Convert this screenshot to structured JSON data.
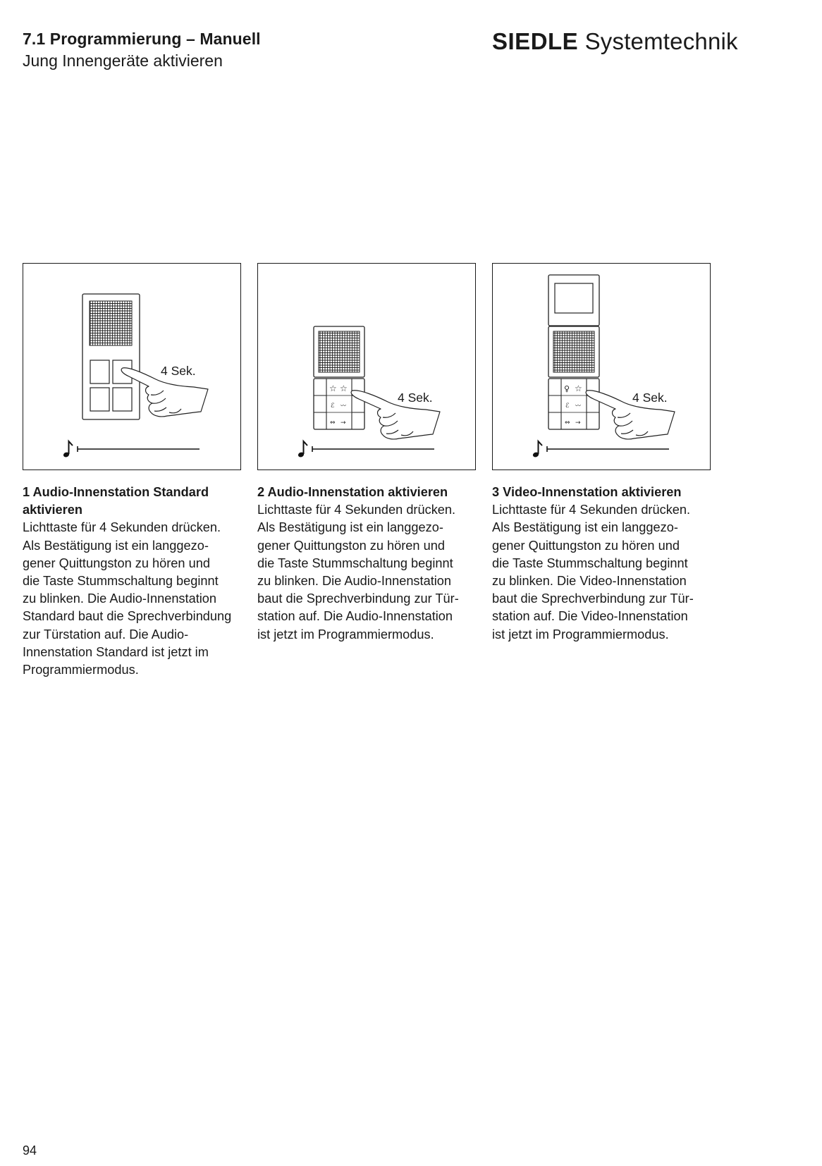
{
  "header": {
    "title": "7.1 Programmierung – Manuell",
    "subtitle": "Jung Innengeräte aktivieren",
    "brand_bold": "SIEDLE",
    "brand_regular": "Systemtechnik"
  },
  "figures": [
    {
      "duration_label": "4 Sek.",
      "caption_title": "1 Audio-Innenstation Standard aktivieren",
      "caption_lines": [
        "Lichttaste für 4 Sekunden drücken.",
        "Als Bestätigung ist ein langgezo-",
        "gener Quittungston zu hören und",
        "die Taste Stummschaltung beginnt",
        "zu blinken. Die Audio-Innenstation",
        "Standard baut die Sprechverbindung",
        "zur Türstation auf. Die Audio-",
        "Innenstation Standard ist jetzt im",
        "Programmiermodus."
      ]
    },
    {
      "duration_label": "4 Sek.",
      "caption_title": "2 Audio-Innenstation aktivieren",
      "caption_lines": [
        "Lichttaste für 4 Sekunden drücken.",
        "Als Bestätigung ist ein langgezo-",
        "gener Quittungston zu hören und",
        "die Taste Stummschaltung beginnt",
        "zu blinken. Die Audio-Innenstation",
        "baut die Sprechverbindung zur Tür-",
        "station auf. Die Audio-Innenstation",
        "ist jetzt im Programmiermodus."
      ]
    },
    {
      "duration_label": "4 Sek.",
      "caption_title": "3 Video-Innenstation aktivieren",
      "caption_lines": [
        "Lichttaste für 4 Sekunden drücken.",
        "Als Bestätigung ist ein langgezo-",
        "gener Quittungston zu hören und",
        "die Taste Stummschaltung beginnt",
        "zu blinken. Die Video-Innenstation",
        "baut die Sprechverbindung zur Tür-",
        "station auf. Die Video-Innenstation",
        "ist jetzt im Programmiermodus."
      ]
    }
  ],
  "page_number": "94"
}
